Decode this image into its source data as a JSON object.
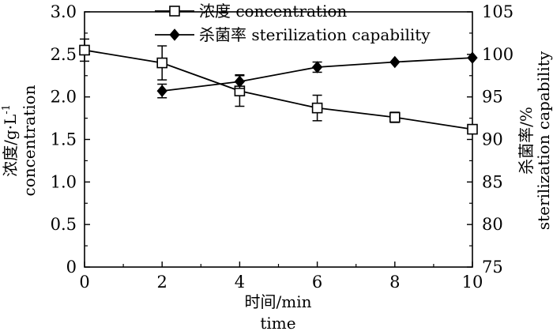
{
  "chart_data": {
    "type": "line",
    "x": [
      0,
      2,
      4,
      6,
      8,
      10
    ],
    "xlim": [
      0,
      10
    ],
    "xticks": [
      "0",
      "2",
      "4",
      "6",
      "8",
      "10"
    ],
    "xlabel": [
      "时间/min",
      "time"
    ],
    "left_axis": {
      "ylim": [
        0,
        3.0
      ],
      "ticks": [
        "0",
        "0.5",
        "1.0",
        "1.5",
        "2.0",
        "2.5",
        "3.0"
      ],
      "label_line1": "浓度/g·L",
      "label_sup": "-1",
      "label_line2": "concentration"
    },
    "right_axis": {
      "ylim": [
        75,
        105
      ],
      "ticks": [
        "75",
        "80",
        "85",
        "90",
        "95",
        "100",
        "105"
      ],
      "label_line1": "杀菌率/%",
      "label_line2": "sterilization capability"
    },
    "legend_position": "top-center",
    "grid": false,
    "series": [
      {
        "name": "浓度 concentration",
        "axis": "left",
        "marker": "open-square",
        "x": [
          0,
          2,
          4,
          6,
          8,
          10
        ],
        "values": [
          2.55,
          2.4,
          2.07,
          1.87,
          1.76,
          1.62
        ],
        "errors": [
          0.13,
          0.2,
          0.18,
          0.15,
          0.06,
          0.03
        ]
      },
      {
        "name": "杀菌率 sterilization capability",
        "axis": "right",
        "marker": "filled-diamond",
        "x": [
          2,
          4,
          6,
          8,
          10
        ],
        "values": [
          95.7,
          96.8,
          98.5,
          99.1,
          99.6
        ],
        "errors": [
          0.8,
          0.8,
          0.6,
          0.0,
          0.0
        ]
      }
    ]
  }
}
